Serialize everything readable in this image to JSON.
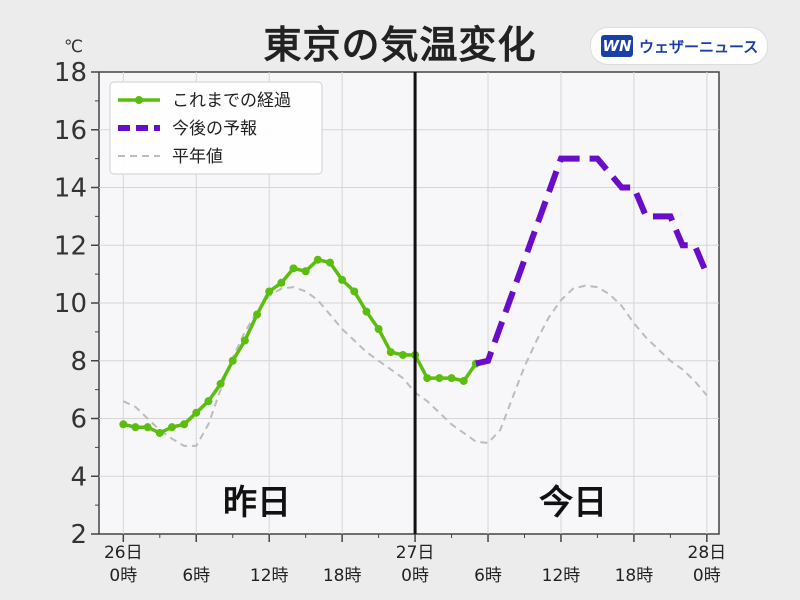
{
  "header": {
    "title": "東京の気温変化",
    "logo_mark": "WN",
    "logo_text": "ウェザーニュース"
  },
  "chart_data": {
    "type": "line",
    "title": "東京の気温変化",
    "unit": "℃",
    "ylim": [
      2,
      18
    ],
    "yticks": [
      2,
      4,
      6,
      8,
      10,
      12,
      14,
      16,
      18
    ],
    "xlim": [
      -2,
      49
    ],
    "grid": true,
    "legend_position": "top-left",
    "x_ticks": [
      {
        "x": 0,
        "line1": "26日",
        "line2": "0時"
      },
      {
        "x": 6,
        "line1": "",
        "line2": "6時"
      },
      {
        "x": 12,
        "line1": "",
        "line2": "12時"
      },
      {
        "x": 18,
        "line1": "",
        "line2": "18時"
      },
      {
        "x": 24,
        "line1": "27日",
        "line2": "0時"
      },
      {
        "x": 30,
        "line1": "",
        "line2": "6時"
      },
      {
        "x": 36,
        "line1": "",
        "line2": "12時"
      },
      {
        "x": 42,
        "line1": "",
        "line2": "18時"
      },
      {
        "x": 48,
        "line1": "28日",
        "line2": "0時"
      }
    ],
    "divider_x": 24,
    "annotations": [
      {
        "text": "昨日",
        "x": 11,
        "y": 3.1
      },
      {
        "text": "今日",
        "x": 37,
        "y": 3.1
      }
    ],
    "series": [
      {
        "name": "これまでの経過",
        "color": "#5bbd0e",
        "style": "solid-markers",
        "points": [
          [
            0,
            5.8
          ],
          [
            1,
            5.7
          ],
          [
            2,
            5.7
          ],
          [
            3,
            5.5
          ],
          [
            4,
            5.7
          ],
          [
            5,
            5.8
          ],
          [
            6,
            6.2
          ],
          [
            7,
            6.6
          ],
          [
            8,
            7.2
          ],
          [
            9,
            8.0
          ],
          [
            10,
            8.7
          ],
          [
            11,
            9.6
          ],
          [
            12,
            10.4
          ],
          [
            13,
            10.7
          ],
          [
            14,
            11.2
          ],
          [
            15,
            11.1
          ],
          [
            16,
            11.5
          ],
          [
            17,
            11.4
          ],
          [
            18,
            10.8
          ],
          [
            19,
            10.4
          ],
          [
            20,
            9.7
          ],
          [
            21,
            9.1
          ],
          [
            22,
            8.3
          ],
          [
            23,
            8.2
          ],
          [
            24,
            8.2
          ],
          [
            25,
            7.4
          ],
          [
            26,
            7.4
          ],
          [
            27,
            7.4
          ],
          [
            28,
            7.3
          ],
          [
            29,
            7.9
          ]
        ]
      },
      {
        "name": "今後の予報",
        "color": "#6a0dc8",
        "style": "dashed",
        "points": [
          [
            29,
            7.9
          ],
          [
            30,
            8.0
          ],
          [
            36,
            15.0
          ],
          [
            39,
            15.0
          ],
          [
            41,
            14.0
          ],
          [
            42,
            14.0
          ],
          [
            43,
            13.0
          ],
          [
            45,
            13.0
          ],
          [
            46,
            12.0
          ],
          [
            47,
            12.0
          ],
          [
            48,
            11.0
          ]
        ]
      },
      {
        "name": "平年値",
        "color": "#bcbcbc",
        "style": "thin-dashed",
        "points": [
          [
            0,
            6.6
          ],
          [
            1,
            6.4
          ],
          [
            2,
            6.0
          ],
          [
            3,
            5.6
          ],
          [
            4,
            5.3
          ],
          [
            5,
            5.05
          ],
          [
            6,
            5.05
          ],
          [
            7,
            5.8
          ],
          [
            8,
            7.0
          ],
          [
            9,
            8.1
          ],
          [
            10,
            9.0
          ],
          [
            11,
            9.7
          ],
          [
            12,
            10.25
          ],
          [
            13,
            10.5
          ],
          [
            14,
            10.55
          ],
          [
            15,
            10.4
          ],
          [
            16,
            10.1
          ],
          [
            17,
            9.6
          ],
          [
            18,
            9.1
          ],
          [
            19,
            8.7
          ],
          [
            20,
            8.3
          ],
          [
            21,
            8.0
          ],
          [
            22,
            7.7
          ],
          [
            23,
            7.4
          ],
          [
            24,
            6.9
          ],
          [
            25,
            6.6
          ],
          [
            26,
            6.2
          ],
          [
            27,
            5.8
          ],
          [
            28,
            5.5
          ],
          [
            29,
            5.2
          ],
          [
            30,
            5.15
          ],
          [
            31,
            5.6
          ],
          [
            32,
            6.7
          ],
          [
            33,
            7.8
          ],
          [
            34,
            8.7
          ],
          [
            35,
            9.5
          ],
          [
            36,
            10.1
          ],
          [
            37,
            10.5
          ],
          [
            38,
            10.6
          ],
          [
            39,
            10.55
          ],
          [
            40,
            10.3
          ],
          [
            41,
            9.9
          ],
          [
            42,
            9.3
          ],
          [
            43,
            8.8
          ],
          [
            44,
            8.4
          ],
          [
            45,
            8.0
          ],
          [
            46,
            7.7
          ],
          [
            47,
            7.3
          ],
          [
            48,
            6.8
          ]
        ]
      }
    ]
  }
}
